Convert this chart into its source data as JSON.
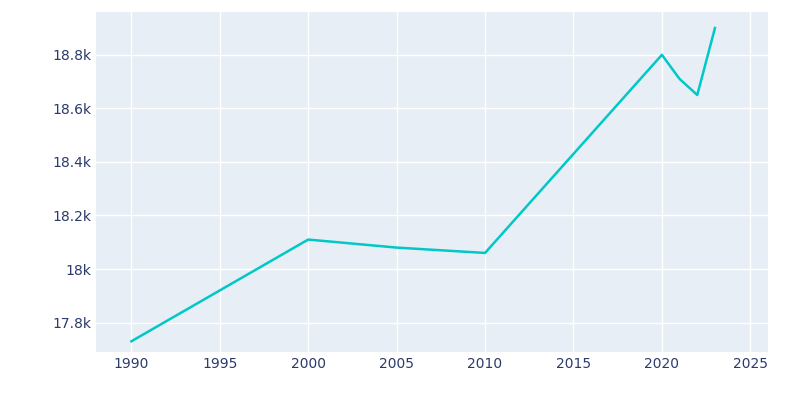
{
  "years": [
    1990,
    2000,
    2005,
    2010,
    2020,
    2021,
    2022,
    2023
  ],
  "population": [
    17730,
    18110,
    18080,
    18060,
    18800,
    18710,
    18650,
    18900
  ],
  "line_color": "#00C8C8",
  "bg_color": "#E8EEF5",
  "plot_bg_color": "#E8EEF5",
  "grid_color": "#FFFFFF",
  "text_color": "#2B3A6B",
  "fig_bg_color": "#FFFFFF",
  "xlim": [
    1988,
    2026
  ],
  "ylim": [
    17690,
    18960
  ],
  "xticks": [
    1990,
    1995,
    2000,
    2005,
    2010,
    2015,
    2020,
    2025
  ],
  "ytick_values": [
    17800,
    18000,
    18200,
    18400,
    18600,
    18800
  ],
  "ytick_labels": [
    "17.8k",
    "18k",
    "18.2k",
    "18.4k",
    "18.6k",
    "18.8k"
  ],
  "linewidth": 1.8
}
